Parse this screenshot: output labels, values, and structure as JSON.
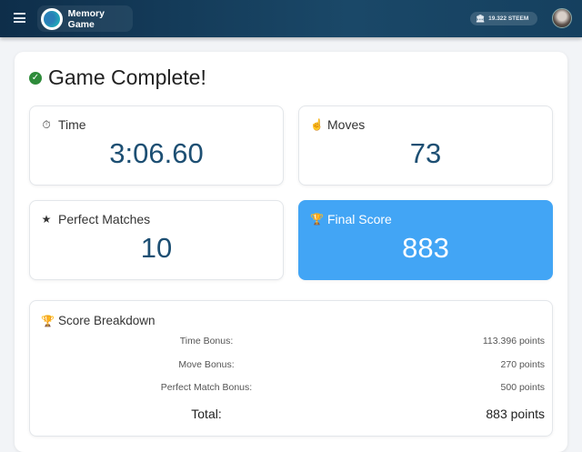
{
  "header": {
    "app_name": "Memory Game",
    "wallet_balance": "19.322 STEEM"
  },
  "title": "Game Complete!",
  "stats": [
    {
      "label": "Time",
      "value": "3:06.60",
      "icon": "stopwatch-icon"
    },
    {
      "label": "Moves",
      "value": "73",
      "icon": "hand-pointer-icon"
    },
    {
      "label": "Perfect Matches",
      "value": "10",
      "icon": "star-icon"
    },
    {
      "label": "Final Score",
      "value": "883",
      "icon": "trophy-icon",
      "highlight": true
    }
  ],
  "breakdown": {
    "title": "Score Breakdown",
    "rows": [
      {
        "label": "Time Bonus:",
        "value": "113.396 points"
      },
      {
        "label": "Move Bonus:",
        "value": "270 points"
      },
      {
        "label": "Perfect Match Bonus:",
        "value": "500 points"
      }
    ],
    "total": {
      "label": "Total:",
      "value": "883 points"
    }
  },
  "colors": {
    "accent": "#42a5f5",
    "value_text": "#1d4f73",
    "success": "#2e8b3a",
    "header": "#0e2e4a"
  }
}
